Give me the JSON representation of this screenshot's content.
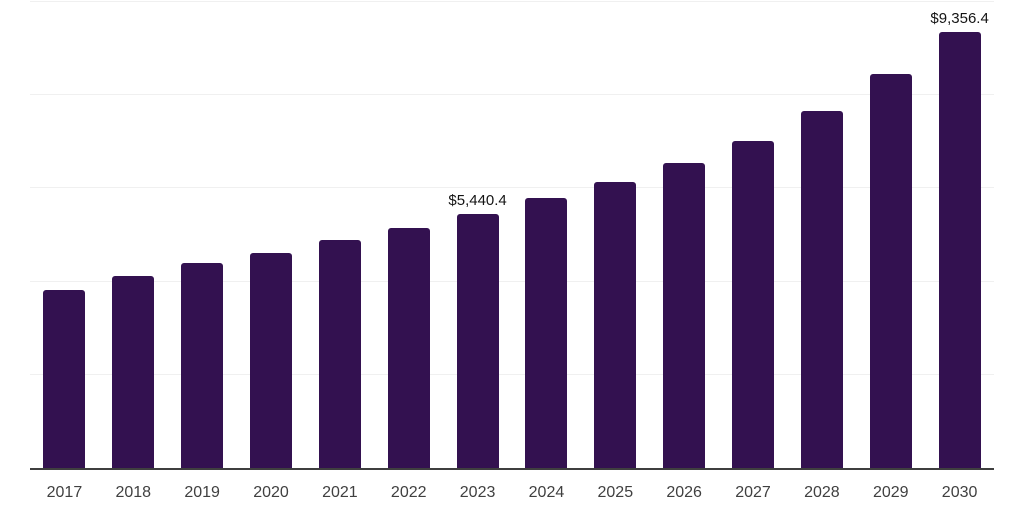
{
  "chart_data": {
    "type": "bar",
    "categories": [
      "2017",
      "2018",
      "2019",
      "2020",
      "2021",
      "2022",
      "2023",
      "2024",
      "2025",
      "2026",
      "2027",
      "2028",
      "2029",
      "2030"
    ],
    "values": [
      3830,
      4110,
      4400,
      4610,
      4900,
      5150,
      5440.4,
      5790,
      6130,
      6550,
      7020,
      7660,
      8460,
      9356.4
    ],
    "data_labels": {
      "2023": "$5,440.4",
      "2030": "$9,356.4"
    },
    "title": "",
    "xlabel": "",
    "ylabel": "",
    "ylim": [
      0,
      10000
    ],
    "gridline_step": 2000,
    "grid": "horizontal-only",
    "legend_position": "none",
    "colors": {
      "bar": "#331150",
      "gridline": "#f0f0f0",
      "axis_line": "#3f3f3f",
      "tick_label": "#404040",
      "value_label": "#141414",
      "background": "#ffffff"
    }
  }
}
